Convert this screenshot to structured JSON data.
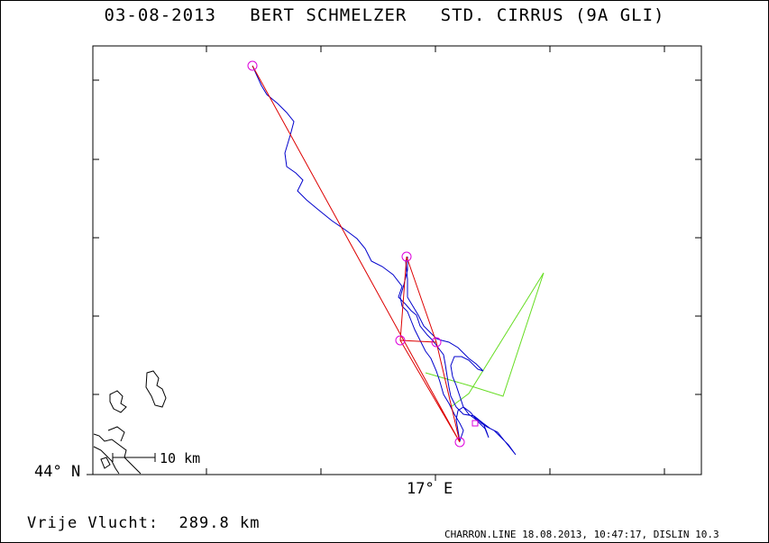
{
  "header": {
    "title": "03-08-2013   BERT SCHMELZER   STD. CIRRUS (9A GLI)"
  },
  "map": {
    "latitude_label": "44° N",
    "longitude_label": "17° E",
    "scale_bar_label": "10 km",
    "colors": {
      "flight_track": "#0000cc",
      "task_line": "#dd0000",
      "turnpoint": "#dd00dd",
      "secondary_track": "#66dd22",
      "coastline": "#000000",
      "frame": "#000000"
    }
  },
  "summary": {
    "distance_label": "Vrije Vlucht:",
    "distance_value": "289.8 km"
  },
  "footer": {
    "credit": "CHARRON.LINE 18.08.2013, 10:47:17, DISLIN 10.3"
  }
}
